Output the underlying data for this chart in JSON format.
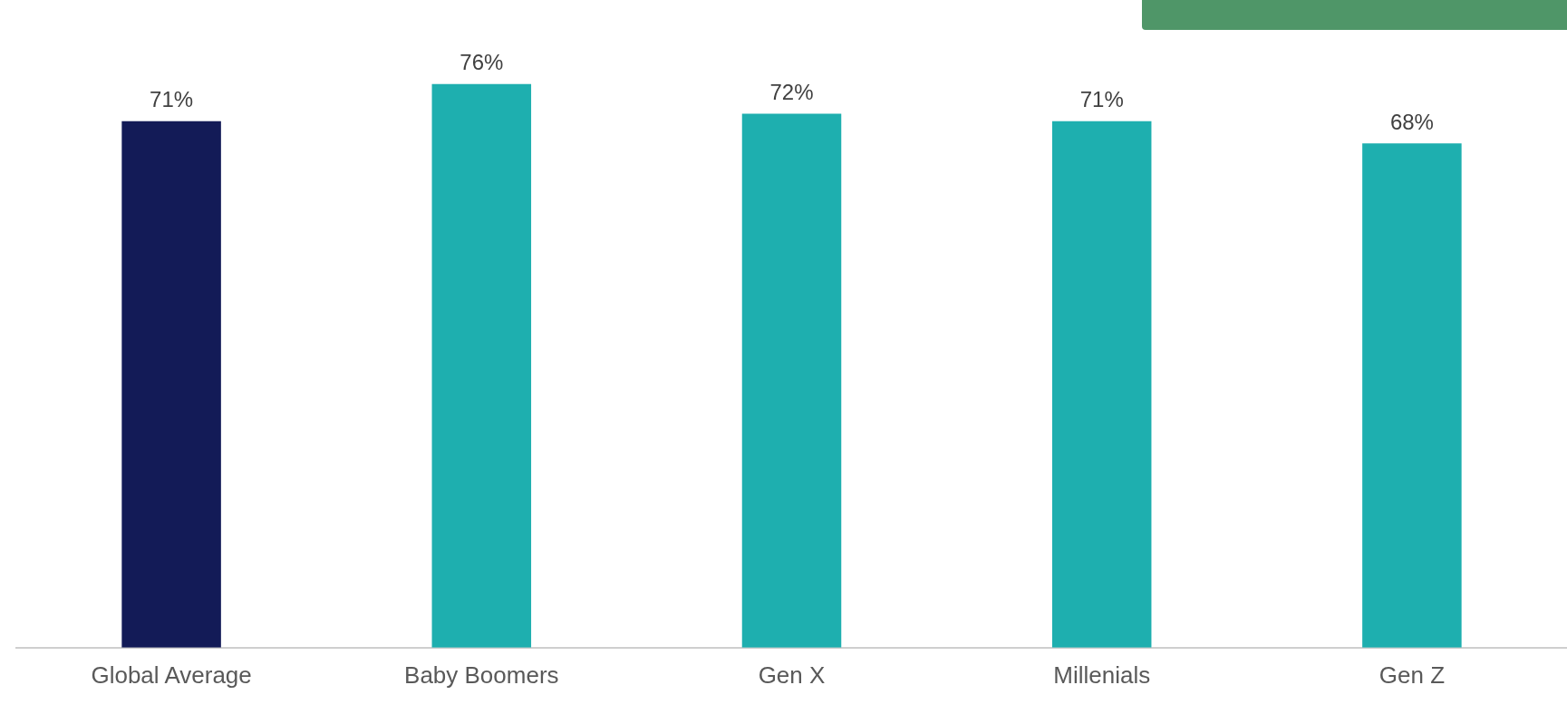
{
  "chart_data": {
    "type": "bar",
    "categories": [
      "Global Average",
      "Baby Boomers",
      "Gen X",
      "Millenials",
      "Gen Z"
    ],
    "values": [
      71,
      76,
      72,
      71,
      68
    ],
    "colors": [
      "#131b57",
      "#1eafaf",
      "#1eafaf",
      "#1eafaf",
      "#1eafaf"
    ],
    "value_labels": [
      "71%",
      "76%",
      "72%",
      "71%",
      "68%"
    ],
    "grid": false,
    "legend": false
  }
}
